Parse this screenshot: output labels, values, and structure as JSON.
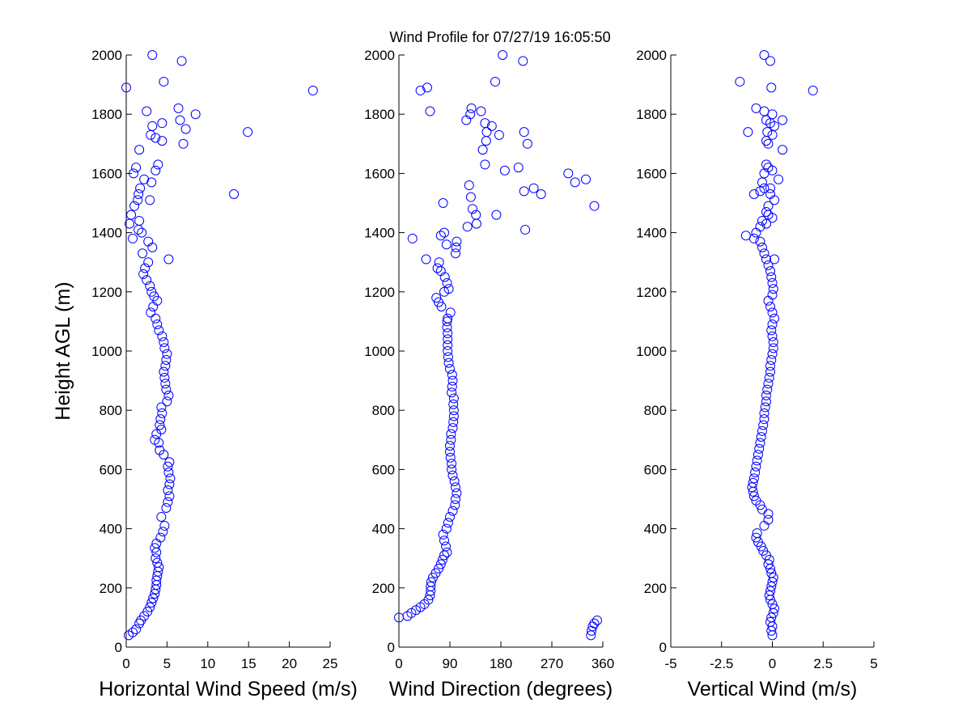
{
  "title": "Wind Profile for  07/27/19 16:05:50",
  "colors": {
    "marker": "#0000ff",
    "axis": "#000000",
    "background": "#ffffff"
  },
  "chart_data": [
    {
      "type": "scatter",
      "xlabel": "Horizontal Wind Speed (m/s)",
      "ylabel": "Height AGL (m)",
      "xlim": [
        0,
        25
      ],
      "ylim": [
        0,
        2000
      ],
      "xticks": [
        0,
        5,
        10,
        15,
        20,
        25
      ],
      "yticks": [
        0,
        200,
        400,
        600,
        800,
        1000,
        1200,
        1400,
        1600,
        1800,
        2000
      ],
      "grid": false,
      "marker": "open-circle",
      "points": [
        [
          0.3,
          40
        ],
        [
          0.8,
          50
        ],
        [
          1.2,
          60
        ],
        [
          1.6,
          80
        ],
        [
          1.8,
          90
        ],
        [
          2.2,
          105
        ],
        [
          2.6,
          120
        ],
        [
          2.9,
          135
        ],
        [
          3.1,
          150
        ],
        [
          3.3,
          165
        ],
        [
          3.5,
          180
        ],
        [
          3.6,
          195
        ],
        [
          3.7,
          210
        ],
        [
          3.7,
          225
        ],
        [
          3.8,
          240
        ],
        [
          3.9,
          255
        ],
        [
          4.0,
          270
        ],
        [
          3.8,
          285
        ],
        [
          3.6,
          300
        ],
        [
          3.7,
          320
        ],
        [
          3.5,
          335
        ],
        [
          3.7,
          350
        ],
        [
          4.2,
          370
        ],
        [
          4.5,
          390
        ],
        [
          4.7,
          410
        ],
        [
          4.3,
          440
        ],
        [
          4.9,
          470
        ],
        [
          5.1,
          490
        ],
        [
          5.3,
          510
        ],
        [
          5.1,
          530
        ],
        [
          5.3,
          550
        ],
        [
          5.4,
          570
        ],
        [
          5.2,
          590
        ],
        [
          5.1,
          610
        ],
        [
          5.3,
          625
        ],
        [
          4.6,
          650
        ],
        [
          4.1,
          665
        ],
        [
          4.0,
          690
        ],
        [
          3.5,
          700
        ],
        [
          3.7,
          720
        ],
        [
          4.3,
          735
        ],
        [
          4.1,
          750
        ],
        [
          4.2,
          770
        ],
        [
          4.4,
          790
        ],
        [
          4.3,
          810
        ],
        [
          5.0,
          830
        ],
        [
          5.2,
          850
        ],
        [
          4.9,
          870
        ],
        [
          4.8,
          890
        ],
        [
          4.7,
          910
        ],
        [
          4.6,
          930
        ],
        [
          4.8,
          950
        ],
        [
          4.9,
          970
        ],
        [
          5.0,
          990
        ],
        [
          4.7,
          1010
        ],
        [
          4.6,
          1030
        ],
        [
          4.4,
          1050
        ],
        [
          4.0,
          1070
        ],
        [
          3.8,
          1090
        ],
        [
          3.6,
          1110
        ],
        [
          3.0,
          1130
        ],
        [
          3.3,
          1150
        ],
        [
          3.8,
          1170
        ],
        [
          3.4,
          1185
        ],
        [
          3.1,
          1200
        ],
        [
          2.9,
          1220
        ],
        [
          2.5,
          1240
        ],
        [
          2.1,
          1260
        ],
        [
          2.3,
          1280
        ],
        [
          2.7,
          1300
        ],
        [
          2.0,
          1330
        ],
        [
          3.2,
          1350
        ],
        [
          2.7,
          1370
        ],
        [
          1.9,
          1400
        ],
        [
          0.8,
          1380
        ],
        [
          1.5,
          1410
        ],
        [
          0.4,
          1430
        ],
        [
          1.6,
          1440
        ],
        [
          0.6,
          1460
        ],
        [
          1.0,
          1490
        ],
        [
          1.4,
          1510
        ],
        [
          1.5,
          1530
        ],
        [
          1.7,
          1550
        ],
        [
          2.2,
          1580
        ],
        [
          0.9,
          1600
        ],
        [
          1.2,
          1620
        ],
        [
          3.9,
          1630
        ],
        [
          3.6,
          1610
        ],
        [
          1.6,
          1680
        ],
        [
          3.0,
          1730
        ],
        [
          2.5,
          1810
        ],
        [
          3.2,
          1760
        ],
        [
          4.4,
          1710
        ],
        [
          4.4,
          1770
        ],
        [
          3.6,
          1720
        ],
        [
          7.0,
          1700
        ],
        [
          7.3,
          1750
        ],
        [
          6.6,
          1780
        ],
        [
          6.4,
          1820
        ],
        [
          8.5,
          1800
        ],
        [
          4.6,
          1910
        ],
        [
          3.2,
          2000
        ],
        [
          6.8,
          1980
        ],
        [
          0.0,
          1890
        ],
        [
          22.9,
          1880
        ],
        [
          14.9,
          1740
        ],
        [
          13.2,
          1530
        ],
        [
          5.2,
          1310
        ],
        [
          2.9,
          1510
        ],
        [
          3.1,
          1570
        ]
      ]
    },
    {
      "type": "scatter",
      "xlabel": "Wind Direction (degrees)",
      "xlim": [
        0,
        360
      ],
      "ylim": [
        0,
        2000
      ],
      "xticks": [
        0,
        90,
        180,
        270,
        360
      ],
      "yticks": [
        0,
        200,
        400,
        600,
        800,
        1000,
        1200,
        1400,
        1600,
        1800,
        2000
      ],
      "grid": false,
      "marker": "open-circle",
      "points": [
        [
          0,
          100
        ],
        [
          15,
          105
        ],
        [
          22,
          115
        ],
        [
          30,
          125
        ],
        [
          38,
          135
        ],
        [
          45,
          145
        ],
        [
          52,
          160
        ],
        [
          55,
          175
        ],
        [
          56,
          190
        ],
        [
          56,
          205
        ],
        [
          57,
          220
        ],
        [
          60,
          235
        ],
        [
          65,
          250
        ],
        [
          70,
          265
        ],
        [
          74,
          280
        ],
        [
          77,
          295
        ],
        [
          80,
          310
        ],
        [
          85,
          320
        ],
        [
          83,
          340
        ],
        [
          80,
          360
        ],
        [
          78,
          380
        ],
        [
          84,
          400
        ],
        [
          87,
          420
        ],
        [
          90,
          440
        ],
        [
          95,
          460
        ],
        [
          99,
          480
        ],
        [
          100,
          500
        ],
        [
          102,
          520
        ],
        [
          100,
          540
        ],
        [
          98,
          560
        ],
        [
          95,
          580
        ],
        [
          93,
          600
        ],
        [
          93,
          620
        ],
        [
          91,
          640
        ],
        [
          90,
          660
        ],
        [
          90,
          680
        ],
        [
          92,
          700
        ],
        [
          92,
          720
        ],
        [
          95,
          740
        ],
        [
          96,
          760
        ],
        [
          97,
          780
        ],
        [
          97,
          800
        ],
        [
          96,
          820
        ],
        [
          97,
          840
        ],
        [
          93,
          860
        ],
        [
          94,
          880
        ],
        [
          95,
          900
        ],
        [
          94,
          920
        ],
        [
          90,
          940
        ],
        [
          88,
          960
        ],
        [
          87,
          980
        ],
        [
          86,
          1000
        ],
        [
          86,
          1020
        ],
        [
          86,
          1040
        ],
        [
          86,
          1060
        ],
        [
          85,
          1080
        ],
        [
          85,
          1100
        ],
        [
          86,
          1110
        ],
        [
          91,
          1130
        ],
        [
          75,
          1150
        ],
        [
          70,
          1165
        ],
        [
          66,
          1180
        ],
        [
          80,
          1200
        ],
        [
          88,
          1210
        ],
        [
          85,
          1230
        ],
        [
          81,
          1250
        ],
        [
          74,
          1270
        ],
        [
          68,
          1280
        ],
        [
          71,
          1300
        ],
        [
          48,
          1310
        ],
        [
          100,
          1330
        ],
        [
          101,
          1350
        ],
        [
          84,
          1360
        ],
        [
          74,
          1390
        ],
        [
          80,
          1400
        ],
        [
          102,
          1370
        ],
        [
          24,
          1380
        ],
        [
          121,
          1420
        ],
        [
          137,
          1430
        ],
        [
          136,
          1460
        ],
        [
          130,
          1480
        ],
        [
          127,
          1520
        ],
        [
          124,
          1560
        ],
        [
          172,
          1460
        ],
        [
          187,
          1610
        ],
        [
          211,
          1620
        ],
        [
          223,
          1410
        ],
        [
          221,
          1540
        ],
        [
          238,
          1550
        ],
        [
          251,
          1530
        ],
        [
          299,
          1600
        ],
        [
          311,
          1570
        ],
        [
          330,
          1580
        ],
        [
          345,
          1490
        ],
        [
          78,
          1500
        ],
        [
          55,
          1810
        ],
        [
          38,
          1880
        ],
        [
          50,
          1890
        ],
        [
          164,
          1760
        ],
        [
          152,
          1770
        ],
        [
          155,
          1740
        ],
        [
          154,
          1710
        ],
        [
          148,
          1680
        ],
        [
          152,
          1630
        ],
        [
          177,
          1730
        ],
        [
          221,
          1740
        ],
        [
          227,
          1700
        ],
        [
          145,
          1810
        ],
        [
          126,
          1800
        ],
        [
          128,
          1820
        ],
        [
          119,
          1780
        ],
        [
          170,
          1910
        ],
        [
          183,
          2000
        ],
        [
          219,
          1980
        ],
        [
          339,
          40
        ],
        [
          340,
          55
        ],
        [
          342,
          70
        ],
        [
          345,
          80
        ],
        [
          350,
          90
        ]
      ]
    },
    {
      "type": "scatter",
      "xlabel": "Vertical Wind (m/s)",
      "xlim": [
        -5,
        5
      ],
      "ylim": [
        0,
        2000
      ],
      "xticks": [
        -5,
        -2.5,
        0,
        2.5,
        5
      ],
      "xticklabels": [
        "-5",
        "-2.5",
        "0",
        "2.5",
        "5"
      ],
      "yticks": [
        0,
        200,
        400,
        600,
        800,
        1000,
        1200,
        1400,
        1600,
        1800,
        2000
      ],
      "grid": false,
      "marker": "open-circle",
      "points": [
        [
          0.0,
          40
        ],
        [
          -0.05,
          55
        ],
        [
          0.0,
          70
        ],
        [
          -0.1,
          85
        ],
        [
          -0.05,
          100
        ],
        [
          0.05,
          115
        ],
        [
          0.1,
          130
        ],
        [
          0.0,
          145
        ],
        [
          -0.1,
          160
        ],
        [
          -0.15,
          175
        ],
        [
          -0.1,
          190
        ],
        [
          -0.05,
          205
        ],
        [
          0.0,
          220
        ],
        [
          0.05,
          235
        ],
        [
          -0.05,
          250
        ],
        [
          -0.1,
          265
        ],
        [
          -0.2,
          280
        ],
        [
          -0.15,
          295
        ],
        [
          -0.3,
          310
        ],
        [
          -0.45,
          325
        ],
        [
          -0.55,
          340
        ],
        [
          -0.7,
          355
        ],
        [
          -0.8,
          370
        ],
        [
          -0.75,
          385
        ],
        [
          -0.4,
          410
        ],
        [
          -0.2,
          430
        ],
        [
          -0.2,
          450
        ],
        [
          -0.5,
          465
        ],
        [
          -0.6,
          480
        ],
        [
          -0.8,
          495
        ],
        [
          -0.9,
          510
        ],
        [
          -0.95,
          525
        ],
        [
          -1.0,
          540
        ],
        [
          -0.95,
          555
        ],
        [
          -0.9,
          570
        ],
        [
          -0.85,
          590
        ],
        [
          -0.8,
          610
        ],
        [
          -0.75,
          630
        ],
        [
          -0.7,
          650
        ],
        [
          -0.65,
          670
        ],
        [
          -0.6,
          690
        ],
        [
          -0.55,
          710
        ],
        [
          -0.5,
          730
        ],
        [
          -0.45,
          750
        ],
        [
          -0.4,
          770
        ],
        [
          -0.4,
          790
        ],
        [
          -0.35,
          810
        ],
        [
          -0.3,
          830
        ],
        [
          -0.3,
          850
        ],
        [
          -0.25,
          870
        ],
        [
          -0.2,
          890
        ],
        [
          -0.15,
          910
        ],
        [
          -0.1,
          930
        ],
        [
          -0.1,
          950
        ],
        [
          -0.05,
          970
        ],
        [
          0.0,
          990
        ],
        [
          0.05,
          1010
        ],
        [
          0.05,
          1030
        ],
        [
          0.0,
          1050
        ],
        [
          -0.05,
          1070
        ],
        [
          0.0,
          1090
        ],
        [
          0.1,
          1110
        ],
        [
          0.0,
          1130
        ],
        [
          -0.1,
          1150
        ],
        [
          -0.2,
          1170
        ],
        [
          0.0,
          1190
        ],
        [
          0.05,
          1210
        ],
        [
          0.0,
          1230
        ],
        [
          -0.05,
          1250
        ],
        [
          -0.1,
          1270
        ],
        [
          -0.2,
          1290
        ],
        [
          -0.3,
          1310
        ],
        [
          -0.4,
          1330
        ],
        [
          -0.5,
          1350
        ],
        [
          -0.6,
          1370
        ],
        [
          -1.3,
          1390
        ],
        [
          -0.9,
          1380
        ],
        [
          -0.8,
          1400
        ],
        [
          -0.6,
          1420
        ],
        [
          -0.5,
          1440
        ],
        [
          0.0,
          1450
        ],
        [
          -0.3,
          1470
        ],
        [
          -0.2,
          1490
        ],
        [
          0.1,
          1510
        ],
        [
          -0.1,
          1530
        ],
        [
          -0.4,
          1550
        ],
        [
          -0.5,
          1570
        ],
        [
          -0.9,
          1530
        ],
        [
          -0.6,
          1540
        ],
        [
          0.3,
          1580
        ],
        [
          0.0,
          1610
        ],
        [
          -0.2,
          1620
        ],
        [
          -0.3,
          1630
        ],
        [
          -0.4,
          1600
        ],
        [
          0.5,
          1680
        ],
        [
          -0.2,
          1700
        ],
        [
          -0.3,
          1710
        ],
        [
          0.0,
          1730
        ],
        [
          0.1,
          1760
        ],
        [
          -0.1,
          1770
        ],
        [
          -0.3,
          1780
        ],
        [
          0.0,
          1800
        ],
        [
          -0.4,
          1810
        ],
        [
          -0.8,
          1820
        ],
        [
          0.5,
          1780
        ],
        [
          -1.2,
          1740
        ],
        [
          -0.25,
          1740
        ],
        [
          -1.6,
          1910
        ],
        [
          -0.05,
          1890
        ],
        [
          -0.4,
          2000
        ],
        [
          -0.1,
          1980
        ],
        [
          2.0,
          1880
        ],
        [
          0.1,
          1310
        ],
        [
          -0.3,
          1430
        ],
        [
          -0.1,
          1550
        ],
        [
          -0.2,
          1460
        ]
      ]
    }
  ]
}
